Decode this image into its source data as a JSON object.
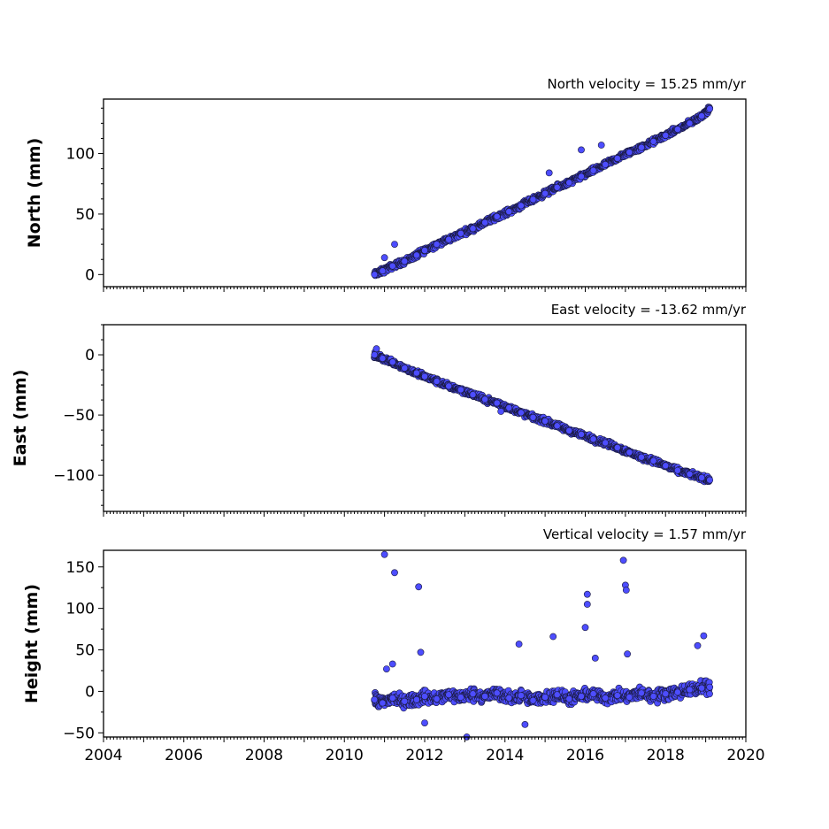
{
  "chart_data": [
    {
      "type": "scatter",
      "title": "North velocity = 15.25 mm/yr",
      "xlabel": "",
      "ylabel": "North (mm)",
      "xlim": [
        2004,
        2020
      ],
      "ylim": [
        -10,
        145
      ],
      "yticks": [
        0,
        50,
        100
      ],
      "ytick_labels": [
        "0",
        "50",
        "100"
      ],
      "grid": false,
      "series": [
        {
          "color": "#4d4dff",
          "x": [
            2010.75,
            2010.95,
            2011.2,
            2011.5,
            2011.8,
            2012.0,
            2012.3,
            2012.6,
            2012.9,
            2013.2,
            2013.5,
            2013.8,
            2014.1,
            2014.4,
            2014.7,
            2015.0,
            2015.3,
            2015.6,
            2015.9,
            2016.2,
            2016.5,
            2016.8,
            2017.1,
            2017.4,
            2017.7,
            2018.0,
            2018.3,
            2018.6,
            2018.9,
            2019.1,
            2011.25,
            2011.0,
            2015.1,
            2016.4,
            2015.9
          ],
          "y": [
            0,
            3,
            7,
            11,
            16,
            20,
            25,
            29,
            34,
            38,
            43,
            48,
            52,
            57,
            62,
            67,
            72,
            76,
            81,
            86,
            91,
            96,
            101,
            105,
            110,
            115,
            120,
            125,
            131,
            137,
            25,
            14,
            84,
            107,
            103
          ]
        }
      ]
    },
    {
      "type": "scatter",
      "title": "East velocity = -13.62 mm/yr",
      "xlabel": "",
      "ylabel": "East (mm)",
      "xlim": [
        2004,
        2020
      ],
      "ylim": [
        -130,
        25
      ],
      "yticks": [
        0,
        -50,
        -100
      ],
      "ytick_labels": [
        "0",
        "−50",
        "−100"
      ],
      "grid": false,
      "series": [
        {
          "color": "#4d4dff",
          "x": [
            2010.75,
            2010.95,
            2011.2,
            2011.5,
            2011.8,
            2012.0,
            2012.3,
            2012.6,
            2012.9,
            2013.2,
            2013.5,
            2013.8,
            2014.1,
            2014.4,
            2014.7,
            2015.0,
            2015.3,
            2015.6,
            2015.9,
            2016.2,
            2016.5,
            2016.8,
            2017.1,
            2017.4,
            2017.7,
            2018.0,
            2018.3,
            2018.6,
            2018.9,
            2019.1,
            2010.8,
            2013.9
          ],
          "y": [
            0,
            -3,
            -6,
            -11,
            -15,
            -18,
            -22,
            -26,
            -29,
            -33,
            -37,
            -40,
            -44,
            -48,
            -52,
            -55,
            -59,
            -63,
            -66,
            -70,
            -73,
            -77,
            -81,
            -85,
            -88,
            -92,
            -96,
            -99,
            -102,
            -104,
            5,
            -47
          ]
        }
      ]
    },
    {
      "type": "scatter",
      "title": "Vertical velocity = 1.57 mm/yr",
      "xlabel": "",
      "ylabel": "Height (mm)",
      "xlim": [
        2004,
        2020
      ],
      "ylim": [
        -55,
        170
      ],
      "yticks": [
        -50,
        0,
        50,
        100,
        150
      ],
      "ytick_labels": [
        "−50",
        "0",
        "50",
        "100",
        "150"
      ],
      "xticks": [
        2004,
        2006,
        2008,
        2010,
        2012,
        2014,
        2016,
        2018,
        2020
      ],
      "xtick_labels": [
        "2004",
        "2006",
        "2008",
        "2010",
        "2012",
        "2014",
        "2016",
        "2018",
        "2020"
      ],
      "grid": false,
      "series": [
        {
          "color": "#4d4dff",
          "x": [
            2010.75,
            2010.95,
            2011.2,
            2011.5,
            2011.8,
            2012.0,
            2012.3,
            2012.6,
            2012.9,
            2013.2,
            2013.5,
            2013.8,
            2014.1,
            2014.4,
            2014.7,
            2015.0,
            2015.3,
            2015.6,
            2015.9,
            2016.2,
            2016.5,
            2016.8,
            2017.1,
            2017.4,
            2017.7,
            2018.0,
            2018.3,
            2018.6,
            2018.9,
            2019.1,
            2011.0,
            2011.25,
            2011.85,
            2016.05,
            2016.05,
            2016.95,
            2017.0,
            2017.02,
            2018.95,
            2015.2,
            2014.35,
            2016.0,
            2016.25,
            2012.0,
            2011.2,
            2013.05,
            2017.05,
            2018.8,
            2014.5,
            2011.05,
            2011.9
          ],
          "y": [
            -10,
            -14,
            -8,
            -12,
            -10,
            -6,
            -9,
            -4,
            -7,
            -3,
            -6,
            -2,
            -8,
            -5,
            -11,
            -7,
            -4,
            -9,
            -6,
            -3,
            -8,
            -5,
            -7,
            -2,
            -6,
            -3,
            -1,
            2,
            4,
            5,
            165,
            143,
            126,
            117,
            105,
            158,
            128,
            122,
            67,
            66,
            57,
            77,
            40,
            -38,
            33,
            -55,
            45,
            55,
            -40,
            27,
            47
          ]
        }
      ]
    }
  ]
}
